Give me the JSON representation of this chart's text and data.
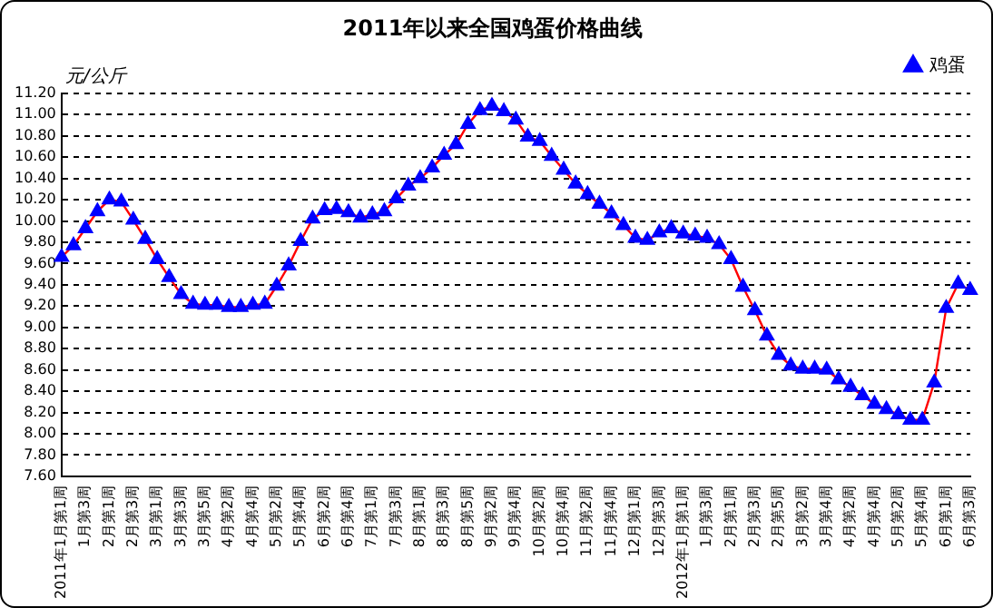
{
  "chart_data": {
    "type": "line",
    "title": "2011年以来全国鸡蛋价格曲线",
    "ylabel": "元/公斤",
    "categories": [
      "2011年1月第1周",
      null,
      "1月第3周",
      null,
      "2月第1周",
      null,
      "2月第3周",
      null,
      "3月第1周",
      null,
      "3月第3周",
      null,
      "3月第5周",
      null,
      "4月第2周",
      null,
      "4月第4周",
      null,
      "5月第2周",
      null,
      "5月第4周",
      null,
      "6月第2周",
      null,
      "6月第4周",
      null,
      "7月第1周",
      null,
      "7月第3周",
      null,
      "8月第1周",
      null,
      "8月第3周",
      null,
      "8月第5周",
      null,
      "9月第2周",
      null,
      "9月第4周",
      null,
      "10月第2周",
      null,
      "10月第4周",
      null,
      "11月第2周",
      null,
      "11月第4周",
      null,
      "12月第1周",
      null,
      "12月第3周",
      null,
      "2012年1月第1周",
      null,
      "1月第3周",
      null,
      "2月第1周",
      null,
      "2月第3周",
      null,
      "2月第5周",
      null,
      "3月第2周",
      null,
      "3月第4周",
      null,
      "4月第2周",
      null,
      "4月第4周",
      null,
      "5月第2周",
      null,
      "5月第4周",
      null,
      "6月第1周",
      null,
      "6月第3周"
    ],
    "series": [
      {
        "name": "鸡蛋",
        "color": "#ff0000",
        "values": [
          9.66,
          9.77,
          9.93,
          10.09,
          10.2,
          10.18,
          10.01,
          9.83,
          9.64,
          9.47,
          9.31,
          9.22,
          9.21,
          9.21,
          9.19,
          9.19,
          9.21,
          9.22,
          9.39,
          9.58,
          9.81,
          10.02,
          10.1,
          10.11,
          10.08,
          10.03,
          10.06,
          10.09,
          10.21,
          10.33,
          10.4,
          10.5,
          10.62,
          10.72,
          10.91,
          11.04,
          11.08,
          11.03,
          10.95,
          10.79,
          10.75,
          10.61,
          10.48,
          10.35,
          10.25,
          10.16,
          10.07,
          9.96,
          9.84,
          9.82,
          9.89,
          9.93,
          9.88,
          9.86,
          9.84,
          9.78,
          9.64,
          9.38,
          9.16,
          8.92,
          8.74,
          8.64,
          8.61,
          8.61,
          8.6,
          8.51,
          8.44,
          8.36,
          8.28,
          8.23,
          8.18,
          8.13,
          8.13,
          8.48,
          9.18,
          9.41,
          9.35
        ]
      }
    ],
    "ylim": [
      7.6,
      11.2
    ],
    "yticks": [
      {
        "value": 7.6,
        "label": "7.60"
      },
      {
        "value": 7.8,
        "label": "7.80"
      },
      {
        "value": 8,
        "label": "8.00"
      },
      {
        "value": 8.2,
        "label": "8.20"
      },
      {
        "value": 8.4,
        "label": "8.40"
      },
      {
        "value": 8.6,
        "label": "8.60"
      },
      {
        "value": 8.8,
        "label": "8.80"
      },
      {
        "value": 9,
        "label": "9.00"
      },
      {
        "value": 9.2,
        "label": "9.20"
      },
      {
        "value": 9.4,
        "label": "9.40"
      },
      {
        "value": 9.6,
        "label": "9.60"
      },
      {
        "value": 9.8,
        "label": "9.80"
      },
      {
        "value": 10,
        "label": "10.00"
      },
      {
        "value": 10.2,
        "label": "10.20"
      },
      {
        "value": 10.4,
        "label": "10.40"
      },
      {
        "value": 10.6,
        "label": "10.60"
      },
      {
        "value": 10.8,
        "label": "10.80"
      },
      {
        "value": 11,
        "label": "11.00"
      },
      {
        "value": 11.2,
        "label": "11.20"
      }
    ],
    "grid": "y",
    "legend": "top right",
    "marker": "triangle",
    "line_style": "solid"
  }
}
